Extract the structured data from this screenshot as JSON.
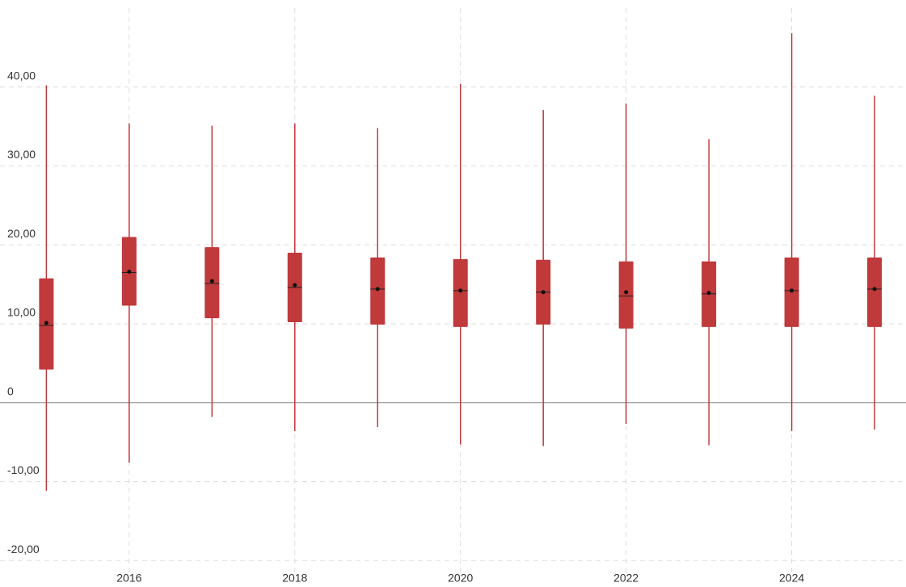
{
  "chart_data": {
    "type": "box",
    "x": [
      2015,
      2016,
      2017,
      2018,
      2019,
      2020,
      2021,
      2022,
      2023,
      2024,
      2025
    ],
    "min": [
      -11.15,
      -7.6,
      -1.8,
      -3.6,
      -3.1,
      -5.3,
      -5.5,
      -2.7,
      -5.4,
      -3.6,
      -3.4
    ],
    "q1": [
      4.2,
      12.3,
      10.7,
      10.2,
      9.9,
      9.6,
      9.9,
      9.4,
      9.6,
      9.6,
      9.6
    ],
    "median": [
      9.8,
      16.5,
      15.1,
      14.6,
      14.4,
      14.2,
      14.0,
      13.5,
      13.8,
      14.2,
      14.4
    ],
    "q3": [
      15.75,
      21.0,
      19.7,
      19.0,
      18.4,
      18.2,
      18.1,
      17.9,
      17.9,
      18.4,
      18.4
    ],
    "max": [
      40.2,
      35.4,
      35.1,
      35.4,
      34.8,
      40.4,
      37.1,
      37.9,
      33.4,
      46.8,
      38.9
    ],
    "mean": [
      10.1,
      16.6,
      15.4,
      14.9,
      14.4,
      14.2,
      14.0,
      14.0,
      13.9,
      14.2,
      14.4
    ],
    "color": "#c0393b",
    "xlim": [
      2014.44,
      2025.38
    ],
    "xticks": [
      2016,
      2018,
      2020,
      2022,
      2024
    ],
    "ylim": [
      -21,
      50
    ],
    "yticks": [
      {
        "value": -20,
        "label": "-20,00"
      },
      {
        "value": -10,
        "label": "-10,00"
      },
      0,
      {
        "value": 10,
        "label": "10,00"
      },
      {
        "value": 20,
        "label": "20,00"
      },
      {
        "value": 30,
        "label": "30,00"
      },
      {
        "value": 40,
        "label": "40,00"
      }
    ],
    "grid": true
  }
}
